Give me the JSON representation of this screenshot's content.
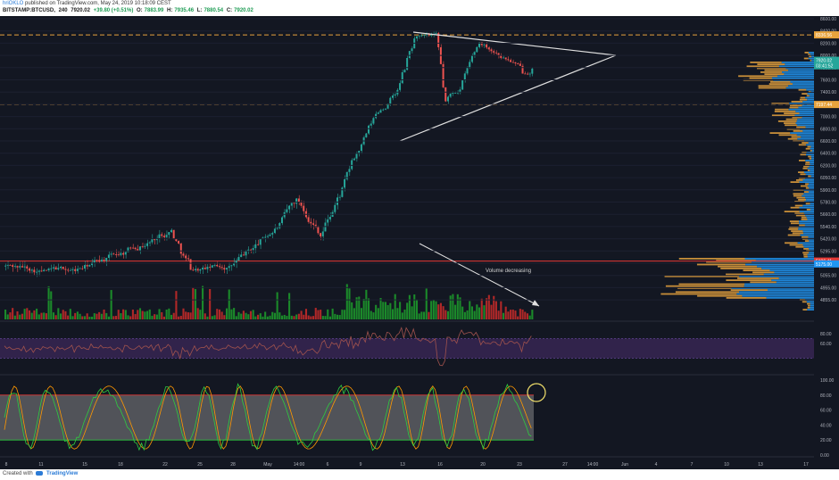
{
  "header": {
    "username": "hriOKLO",
    "published_text": "published on TradingView.com, May 24, 2019 10:18:09 CEST",
    "symbol": "BITSTAMP:BTCUSD,",
    "interval": "240",
    "last_price": "7920.02",
    "change": "+39.80 (+0.51%)",
    "o_label": "O:",
    "o_value": "7883.99",
    "h_label": "H:",
    "h_value": "7935.46",
    "l_label": "L:",
    "l_value": "7880.54",
    "c_label": "C:",
    "c_value": "7920.02"
  },
  "footer": {
    "created_text": "Created with",
    "brand": "TradingView"
  },
  "colors": {
    "background": "#131722",
    "up_candle": "#26a69a",
    "down_candle": "#ef5350",
    "volume_up": "#1b8a2a",
    "volume_down": "#b02828",
    "dashed_levels": "#e8a33d",
    "support_line": "#e53935",
    "volume_profile_up": "#e8a33d",
    "volume_profile_down": "#2196f3",
    "rsi_band": "#4a2d6e",
    "stoch_band": "#9e9e9e",
    "stoch_k": "#2ecc40",
    "stoch_d": "#ff9800",
    "highlight_circle": "#f2e06b"
  },
  "chart_data": {
    "type": "candlestick",
    "symbol": "BITSTAMP:BTCUSD",
    "interval": "240",
    "y_axis": {
      "ticks": [
        "8600.00",
        "8400.00",
        "8200.00",
        "8000.00",
        "7800.00",
        "7600.00",
        "7400.00",
        "7200.00",
        "7000.00",
        "6800.00",
        "6600.00",
        "6400.00",
        "6200.00",
        "6050.00",
        "5900.00",
        "5780.00",
        "5660.00",
        "5540.00",
        "5420.00",
        "5295.00",
        "5175.00",
        "5055.00",
        "4955.00",
        "4855.00"
      ],
      "range": [
        4855,
        8600
      ]
    },
    "x_axis": {
      "ticks": [
        "8",
        "11",
        "15",
        "18",
        "22",
        "25",
        "28",
        "May",
        "14:00",
        "6",
        "9",
        "13",
        "16",
        "20",
        "23",
        "27",
        "14:00",
        "Jun",
        "4",
        "7",
        "10",
        "13",
        "17"
      ]
    },
    "price_labels": [
      {
        "text": "8336.56",
        "price": 8336,
        "color": "#e8a33d"
      },
      {
        "text": "7920.02",
        "price": 7920,
        "color": "#26a69a"
      },
      {
        "text": "03:41:52",
        "price": 7830,
        "color": "#26a69a"
      },
      {
        "text": "7197.44",
        "price": 7197,
        "color": "#e8a33d"
      },
      {
        "text": "5196.41",
        "price": 5196,
        "color": "#e53935"
      },
      {
        "text": "5175.00",
        "price": 5168,
        "color": "#2196f3"
      }
    ],
    "levels": [
      {
        "price": 8336,
        "style": "dashed",
        "color": "#e8a33d"
      },
      {
        "price": 7197,
        "style": "dashed",
        "color": "#e8a33d"
      },
      {
        "price": 5196,
        "style": "solid",
        "color": "#e53935"
      }
    ],
    "annotation": {
      "text": "Volume decreasing"
    },
    "rsi": {
      "ticks": [
        "80.00",
        "60.00"
      ],
      "band": [
        30,
        70
      ]
    },
    "stoch": {
      "ticks": [
        "100.00",
        "80.00",
        "60.00",
        "40.00",
        "20.00",
        "0.00"
      ],
      "band": [
        20,
        80
      ]
    },
    "segments": [
      {
        "n": 30,
        "target": 5070
      },
      {
        "n": 20,
        "target": 5260
      },
      {
        "n": 20,
        "target": 5580
      },
      {
        "n": 8,
        "target": 5130
      },
      {
        "n": 16,
        "target": 5140
      },
      {
        "n": 10,
        "target": 5290
      },
      {
        "n": 18,
        "target": 5720
      },
      {
        "n": 10,
        "target": 5580
      },
      {
        "n": 10,
        "target": 5960
      },
      {
        "n": 14,
        "target": 6920
      },
      {
        "n": 8,
        "target": 7420
      },
      {
        "n": 8,
        "target": 8280
      },
      {
        "n": 8,
        "target": 8230
      },
      {
        "n": 4,
        "target": 7150
      },
      {
        "n": 6,
        "target": 7480
      },
      {
        "n": 8,
        "target": 8100
      },
      {
        "n": 14,
        "target": 7980
      },
      {
        "n": 4,
        "target": 7640
      },
      {
        "n": 4,
        "target": 7920
      }
    ]
  }
}
